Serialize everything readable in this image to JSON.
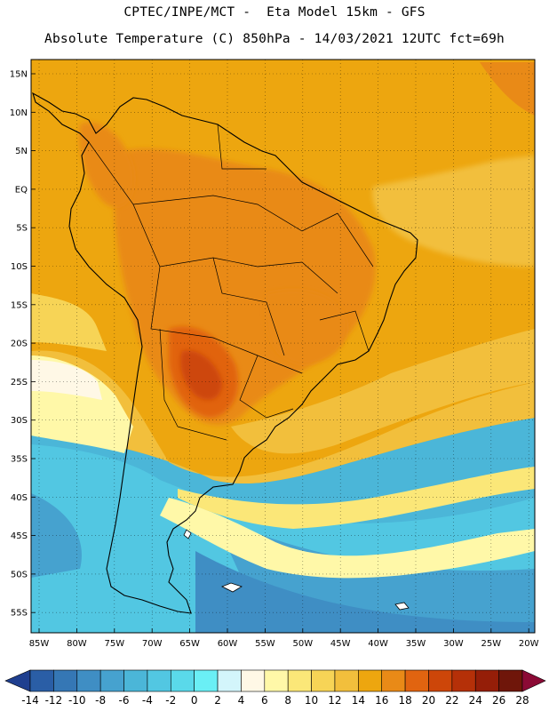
{
  "title": {
    "line1": "CPTEC/INPE/MCT -  Eta Model 15km - GFS",
    "line2": "Absolute Temperature (C) 850hPa - 14/03/2021 12UTC fct=69h"
  },
  "map": {
    "lat_labels": [
      "15N",
      "10N",
      "5N",
      "EQ",
      "5S",
      "10S",
      "15S",
      "20S",
      "25S",
      "30S",
      "35S",
      "40S",
      "45S",
      "50S",
      "55S"
    ],
    "lon_labels": [
      "85W",
      "80W",
      "75W",
      "70W",
      "65W",
      "60W",
      "55W",
      "50W",
      "45W",
      "40W",
      "35W",
      "30W",
      "25W",
      "20W"
    ],
    "graticule": "dotted"
  },
  "colorbar": {
    "ticks": [
      "-14",
      "-12",
      "-10",
      "-8",
      "-6",
      "-4",
      "-2",
      "0",
      "2",
      "4",
      "6",
      "8",
      "10",
      "12",
      "14",
      "16",
      "18",
      "20",
      "22",
      "24",
      "26",
      "28"
    ],
    "colors": [
      "#1f3f8f",
      "#2a5ea6",
      "#3577b5",
      "#3f8ec4",
      "#46a2cf",
      "#4bb6d8",
      "#52c7e2",
      "#5ad9ea",
      "#6aeff5",
      "#d3f5fb",
      "#fff8e6",
      "#fff8a8",
      "#fbe778",
      "#f7d456",
      "#f2bf3c",
      "#eda60f",
      "#e98a17",
      "#e16410",
      "#cd4609",
      "#b53008",
      "#951e08",
      "#6f160a",
      "#8b0a35"
    ]
  }
}
